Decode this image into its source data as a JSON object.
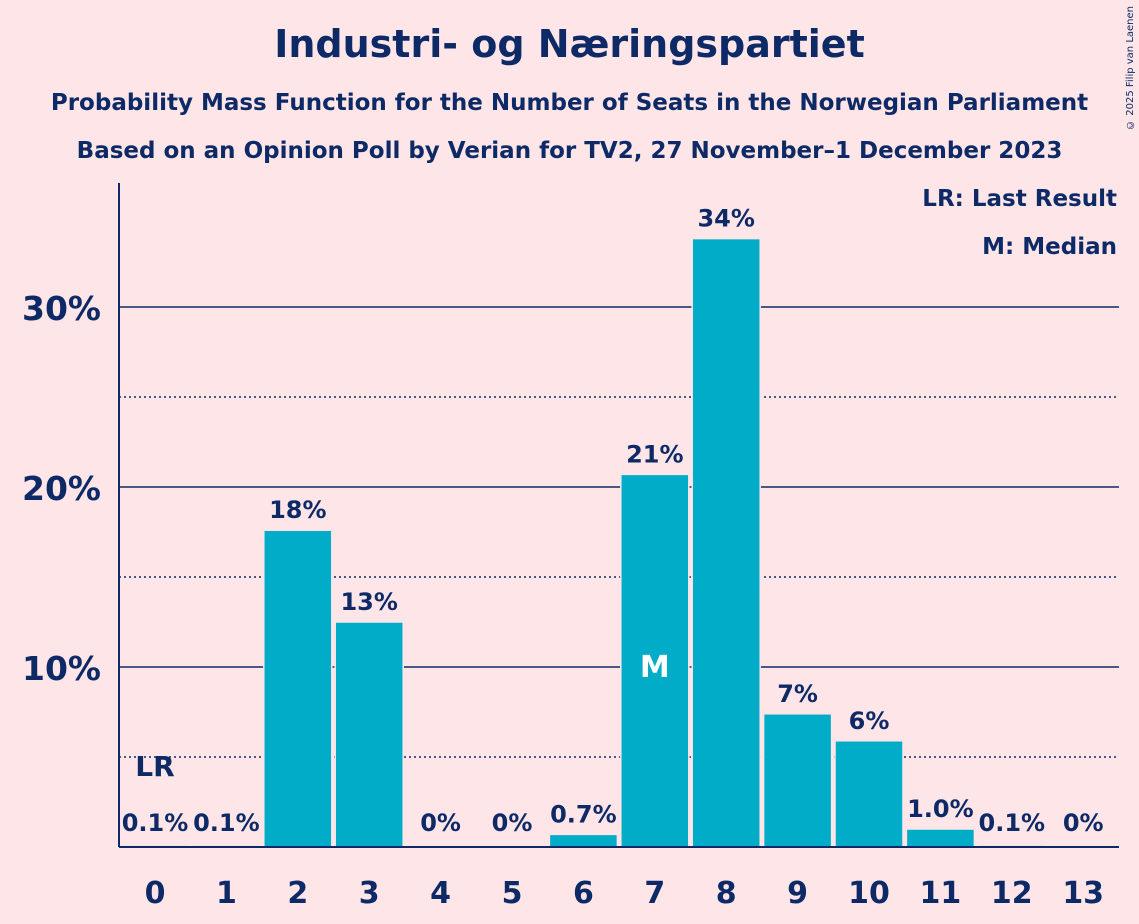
{
  "title": "Industri- og Næringspartiet",
  "subtitle1": "Probability Mass Function for the Number of Seats in the Norwegian Parliament",
  "subtitle2": "Based on an Opinion Poll by Verian for TV2, 27 November–1 December 2023",
  "copyright": "© 2025 Filip van Laenen",
  "legend": {
    "lr": "LR: Last Result",
    "m": "M: Median"
  },
  "colors": {
    "background": "#FDE5E8",
    "bar": "#00ACC8",
    "text": "#0E2A66"
  },
  "chart_data": {
    "type": "bar",
    "categories": [
      "0",
      "1",
      "2",
      "3",
      "4",
      "5",
      "6",
      "7",
      "8",
      "9",
      "10",
      "11",
      "12",
      "13"
    ],
    "values": [
      0.1,
      0.1,
      17.6,
      12.5,
      0,
      0,
      0.7,
      20.7,
      33.8,
      7.4,
      5.9,
      1.0,
      0.1,
      0
    ],
    "value_labels": [
      "0.1%",
      "0.1%",
      "18%",
      "13%",
      "0%",
      "0%",
      "0.7%",
      "21%",
      "34%",
      "7%",
      "6%",
      "1.0%",
      "0.1%",
      "0%"
    ],
    "ylim": [
      0,
      37
    ],
    "yticks": [
      10,
      20,
      30
    ],
    "ytick_labels": [
      "10%",
      "20%",
      "30%"
    ],
    "minor_gridlines": [
      5,
      15,
      25
    ],
    "last_result_seat": "0",
    "last_result_label": "LR",
    "median_seat": "7",
    "median_label": "M",
    "xlabel": "",
    "ylabel": ""
  }
}
